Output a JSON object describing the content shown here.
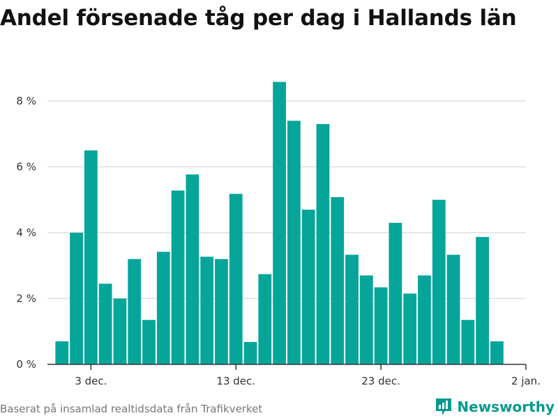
{
  "title": "Andel försenade tåg per dag i Hallands län",
  "source": "Baserat på insamlad realtidsdata från Trafikverket",
  "brand": {
    "name": "Newsworthy",
    "logo_icon": "newsworthy-logo-icon"
  },
  "colors": {
    "bar": "#06a59a",
    "grid": "#dddddd",
    "axis": "#333333",
    "brand": "#079a8f"
  },
  "chart_data": {
    "type": "bar",
    "title": "Andel försenade tåg per dag i Hallands län",
    "xlabel": "",
    "ylabel": "",
    "categories": [
      "2023-12-01",
      "2023-12-02",
      "2023-12-03",
      "2023-12-04",
      "2023-12-05",
      "2023-12-06",
      "2023-12-07",
      "2023-12-08",
      "2023-12-09",
      "2023-12-10",
      "2023-12-11",
      "2023-12-12",
      "2023-12-13",
      "2023-12-14",
      "2023-12-15",
      "2023-12-16",
      "2023-12-17",
      "2023-12-18",
      "2023-12-19",
      "2023-12-20",
      "2023-12-21",
      "2023-12-22",
      "2023-12-23",
      "2023-12-24",
      "2023-12-25",
      "2023-12-26",
      "2023-12-27",
      "2023-12-28",
      "2023-12-29",
      "2023-12-30",
      "2023-12-31"
    ],
    "values": [
      0.7,
      4.0,
      6.5,
      2.45,
      2.0,
      3.2,
      1.35,
      3.42,
      5.28,
      5.77,
      3.27,
      3.2,
      5.18,
      0.68,
      2.74,
      8.58,
      7.4,
      4.7,
      7.3,
      5.08,
      3.33,
      2.7,
      2.34,
      4.3,
      2.15,
      2.7,
      5.0,
      3.33,
      1.35,
      3.87,
      0.7
    ],
    "ylim": [
      0,
      9
    ],
    "yticks": [
      0,
      2,
      4,
      6,
      8
    ],
    "ytick_labels": [
      "0 %",
      "2 %",
      "4 %",
      "6 %",
      "8 %"
    ],
    "xlim": [
      "2023-11-30",
      "2024-01-02"
    ],
    "xticks": [
      {
        "date": "2023-12-03",
        "label": "3 dec."
      },
      {
        "date": "2023-12-13",
        "label": "13 dec."
      },
      {
        "date": "2023-12-23",
        "label": "23 dec."
      },
      {
        "date": "2024-01-02",
        "label": "2 jan."
      }
    ],
    "grid": true,
    "legend": "none"
  }
}
